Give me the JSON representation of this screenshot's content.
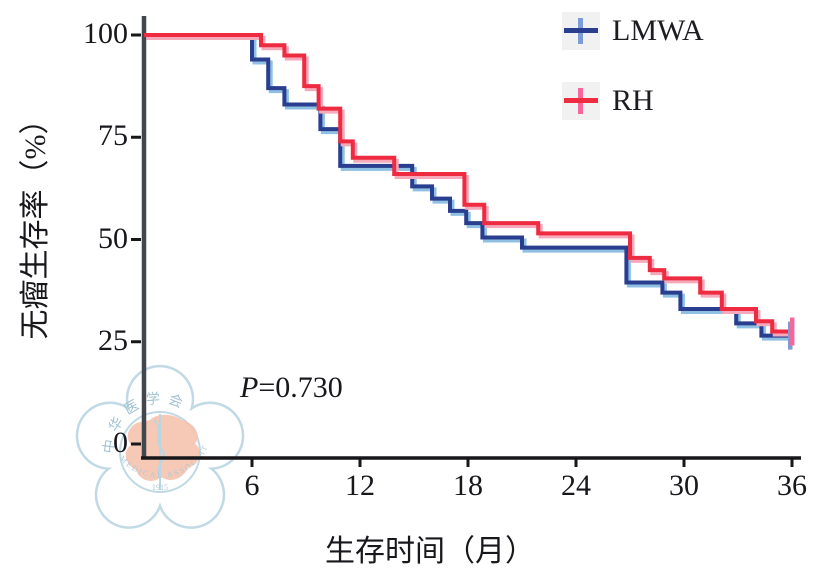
{
  "figure": {
    "p_value_label": "P=0.730",
    "x_axis_title": "生存时间（月）",
    "y_axis_title": "无瘤生存率（%）"
  },
  "legend": {
    "items": [
      {
        "label": "LMWA"
      },
      {
        "label": "RH"
      }
    ]
  },
  "watermark": {
    "top_text": "中华医学会",
    "bottom_text": "MEDICAL ASSOCIATION",
    "year_text": "1915"
  },
  "chart_data": {
    "type": "line",
    "subtype": "kaplan-meier-step",
    "title": "",
    "xlabel": "生存时间（月）",
    "ylabel": "无瘤生存率（%）",
    "annotation": "P=0.730",
    "xlim": [
      0,
      36
    ],
    "ylim": [
      0,
      100
    ],
    "x_ticks": [
      6,
      12,
      18,
      24,
      30,
      36
    ],
    "y_ticks": [
      0,
      25,
      50,
      75,
      100
    ],
    "grid": false,
    "legend_position": "top-right",
    "axis_color": "#42464e",
    "tick_color": "#17171a",
    "series": [
      {
        "name": "LMWA",
        "color": "#2a3e8f",
        "shadow_color": "#8fc0e4",
        "marker_color": "#7d9bd6",
        "points": [
          [
            0,
            100
          ],
          [
            6,
            94
          ],
          [
            6.9,
            87
          ],
          [
            7.8,
            83
          ],
          [
            9.8,
            77
          ],
          [
            10.9,
            68
          ],
          [
            14.9,
            63
          ],
          [
            16,
            60
          ],
          [
            17,
            57
          ],
          [
            17.9,
            54
          ],
          [
            18.8,
            50.5
          ],
          [
            21,
            48
          ],
          [
            26.8,
            39.5
          ],
          [
            28.8,
            37
          ],
          [
            29.8,
            33
          ],
          [
            32.9,
            29.5
          ],
          [
            34.3,
            26.5
          ],
          [
            35.9,
            26.5
          ]
        ]
      },
      {
        "name": "RH",
        "color": "#ee2b40",
        "shadow_color": "#f6a9ba",
        "marker_color": "#f4679d",
        "points": [
          [
            0,
            100
          ],
          [
            6.5,
            97.5
          ],
          [
            7.8,
            95
          ],
          [
            8.9,
            87.5
          ],
          [
            9.7,
            82
          ],
          [
            10.9,
            74
          ],
          [
            11.6,
            70
          ],
          [
            13.9,
            66
          ],
          [
            17.8,
            58.5
          ],
          [
            18.9,
            54
          ],
          [
            21.9,
            51.5
          ],
          [
            27,
            45.5
          ],
          [
            28.1,
            42.5
          ],
          [
            28.9,
            40.5
          ],
          [
            30.9,
            37
          ],
          [
            32.1,
            33
          ],
          [
            34,
            30
          ],
          [
            34.9,
            27.5
          ],
          [
            35.9,
            27.5
          ]
        ]
      }
    ],
    "censor_marks": [
      {
        "series": "LMWA",
        "t": 35.9,
        "s": 26.5
      },
      {
        "series": "RH",
        "t": 35.9,
        "s": 27.5
      }
    ]
  }
}
